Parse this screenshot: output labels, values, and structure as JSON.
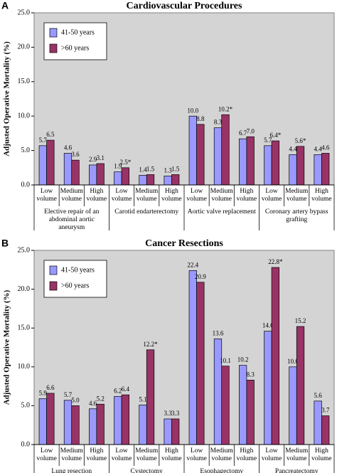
{
  "chart_data": [
    {
      "type": "bar",
      "panel": "A",
      "title": "Cardiovascular Procedures",
      "y_label": "Adjusted Operative Mortality (%)",
      "categories": [
        "Low volume",
        "Medium volume",
        "High volume",
        "Low volume",
        "Medium volume",
        "High volume",
        "Low volume",
        "Medium volume",
        "High volume",
        "Low volume",
        "Medium volume",
        "High volume"
      ],
      "groups": [
        "Elective repair of an abdominal aortic aneurysm",
        "Carotid endarterectomy",
        "Aortic valve replacement",
        "Coronary artery bypass grafting"
      ],
      "series": [
        {
          "name": "41-50 years",
          "color": "#9999ff",
          "values": [
            5.7,
            4.6,
            2.9,
            1.9,
            1.4,
            1.3,
            10.0,
            8.3,
            6.7,
            5.7,
            4.4,
            4.4
          ],
          "value_labels": [
            "5.7",
            "4.6",
            "2.9",
            "1.9",
            "1.4",
            "1.3",
            "10.0",
            "8.3",
            "6.7",
            "5.7",
            "4.4",
            "4.4"
          ]
        },
        {
          "name": ">60 years",
          "color": "#993366",
          "values": [
            6.5,
            3.6,
            3.1,
            2.5,
            1.5,
            1.5,
            8.8,
            10.2,
            7.0,
            6.4,
            5.6,
            4.6
          ],
          "value_labels": [
            "6.5",
            "3.6",
            "3.1",
            "2.5*",
            "1.5",
            "1.5",
            "8.8",
            "10.2*",
            "7.0",
            "6.4*",
            "5.6*",
            "4.6"
          ]
        }
      ],
      "ylim": [
        0,
        25
      ],
      "yticks": [
        {
          "value": 0,
          "label": "0.0"
        },
        {
          "value": 5,
          "label": "5.0"
        },
        {
          "value": 10,
          "label": "10.0"
        },
        {
          "value": 15,
          "label": "15.0"
        },
        {
          "value": 20,
          "label": "20.0"
        },
        {
          "value": 25,
          "label": "25.0"
        }
      ],
      "legend_loc": "upper left"
    },
    {
      "type": "bar",
      "panel": "B",
      "title": "Cancer Resections",
      "y_label": "Adjusted Operative Mortality (%)",
      "categories": [
        "Low volume",
        "Medium volume",
        "High volume",
        "Low volume",
        "Medium volume",
        "High volume",
        "Low volume",
        "Medium volume",
        "High volume",
        "Low volume",
        "Medium volume",
        "High volume"
      ],
      "groups": [
        "Lung resection",
        "Cystectomy",
        "Esophagectomy",
        "Pancreatectomy"
      ],
      "series": [
        {
          "name": "41-50 years",
          "color": "#9999ff",
          "values": [
            5.9,
            5.7,
            4.6,
            6.2,
            5.1,
            3.3,
            22.4,
            13.6,
            10.2,
            14.6,
            10.0,
            5.6
          ],
          "value_labels": [
            "5.9",
            "5.7",
            "4.6",
            "6.2",
            "5.1",
            "3.3",
            "22.4",
            "13.6",
            "10.2",
            "14.6",
            "10.0",
            "5.6"
          ]
        },
        {
          "name": ">60 years",
          "color": "#993366",
          "values": [
            6.6,
            5.0,
            5.2,
            6.4,
            12.2,
            3.3,
            20.9,
            10.1,
            8.3,
            22.8,
            15.2,
            3.7
          ],
          "value_labels": [
            "6.6",
            "5.0",
            "5.2",
            "6.4",
            "12.2*",
            "3.3",
            "20.9",
            "10.1",
            "8.3",
            "22.8*",
            "15.2",
            "3.7"
          ]
        }
      ],
      "ylim": [
        0,
        25
      ],
      "yticks": [
        {
          "value": 0,
          "label": "0.0"
        },
        {
          "value": 5,
          "label": "5.0"
        },
        {
          "value": 10,
          "label": "10.0"
        },
        {
          "value": 15,
          "label": "15.0"
        },
        {
          "value": 20,
          "label": "20.0"
        },
        {
          "value": 25,
          "label": "25.0"
        }
      ],
      "legend_loc": "upper left"
    }
  ]
}
